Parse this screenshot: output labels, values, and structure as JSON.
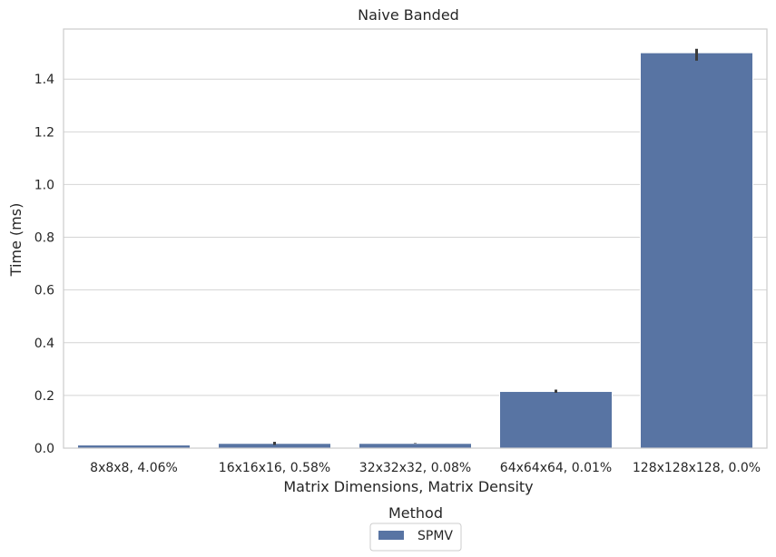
{
  "chart_data": {
    "type": "bar",
    "title": "Naive Banded",
    "xlabel": "Matrix Dimensions, Matrix Density",
    "ylabel": "Time (ms)",
    "categories": [
      "8x8x8, 4.06%",
      "16x16x16, 0.58%",
      "32x32x32, 0.08%",
      "64x64x64, 0.01%",
      "128x128x128, 0.0%"
    ],
    "series": [
      {
        "name": "SPMV",
        "values": [
          0.012,
          0.018,
          0.018,
          0.215,
          1.5
        ],
        "error_low": [
          0.012,
          0.012,
          0.017,
          0.21,
          1.47
        ],
        "error_high": [
          0.012,
          0.024,
          0.019,
          0.222,
          1.515
        ],
        "color": "#5874a3"
      }
    ],
    "ylim": [
      0,
      1.59
    ],
    "yticks": [
      "0.0",
      "0.2",
      "0.4",
      "0.6",
      "0.8",
      "1.0",
      "1.2",
      "1.4"
    ],
    "ytick_values": [
      0,
      0.2,
      0.4,
      0.6,
      0.8,
      1.0,
      1.2,
      1.4
    ],
    "grid": true,
    "legend": {
      "title": "Method",
      "placement": "bottom-center"
    }
  }
}
